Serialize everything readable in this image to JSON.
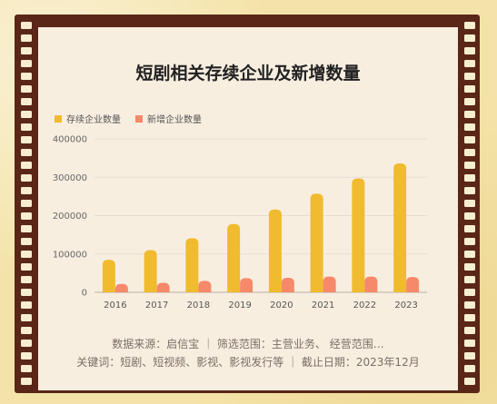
{
  "chart_data": {
    "type": "bar",
    "title": "短剧相关存续企业及新增数量",
    "categories": [
      "2016",
      "2017",
      "2018",
      "2019",
      "2020",
      "2021",
      "2022",
      "2023"
    ],
    "series": [
      {
        "name": "存续企业数量",
        "values": [
          85000,
          110000,
          141000,
          178000,
          216000,
          257000,
          297000,
          336000
        ],
        "color": "#f0bb2e"
      },
      {
        "name": "新增企业数量",
        "values": [
          22000,
          25000,
          30000,
          37000,
          38000,
          41000,
          41000,
          40000
        ],
        "color": "#f5896a"
      }
    ],
    "ylim": [
      0,
      400000
    ],
    "yticks": [
      0,
      100000,
      200000,
      300000,
      400000
    ],
    "ytick_labels": [
      "0",
      "100000",
      "200000",
      "300000",
      "400000"
    ],
    "legend_position": "top-left",
    "grid": true
  },
  "footer": {
    "line1": "数据来源：启信宝 ｜ 筛选范围：主营业务、 经营范围…",
    "line2": "关键词：短剧、短视频、影视、影视发行等 ｜ 截止日期：2023年12月"
  }
}
